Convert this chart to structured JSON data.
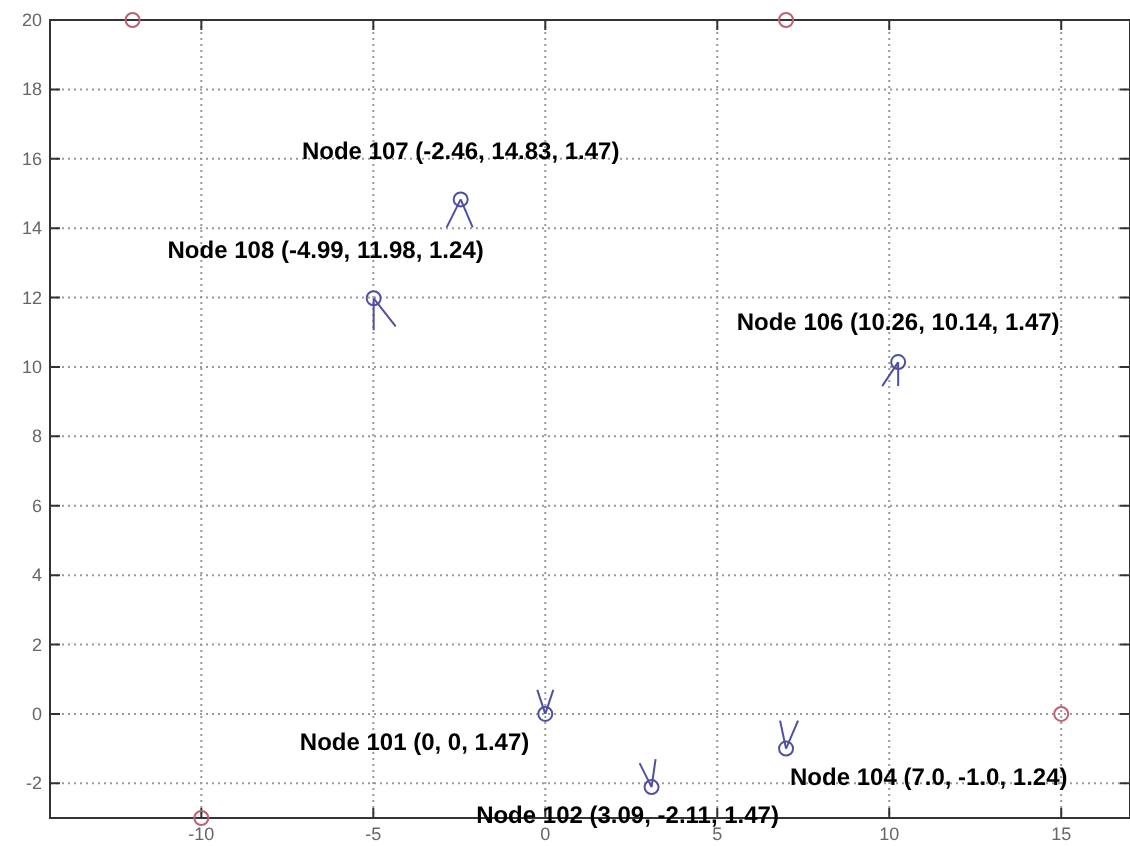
{
  "chart_data": {
    "type": "scatter",
    "xlim": [
      -14.4,
      17
    ],
    "ylim": [
      -3,
      20
    ],
    "xticks": [
      -10,
      -5,
      0,
      5,
      10,
      15
    ],
    "yticks": [
      -2,
      0,
      2,
      4,
      6,
      8,
      10,
      12,
      14,
      16,
      18,
      20
    ],
    "grid": true,
    "marker": "circle",
    "series": [
      {
        "color": "#c06070",
        "x": [
          -12,
          7,
          15,
          -10
        ],
        "values": [
          20,
          20,
          0,
          -3
        ]
      },
      {
        "color": "#5050a0",
        "x": [
          0,
          3.09,
          7,
          10.26,
          -2.46,
          -4.99
        ],
        "values": [
          0,
          -2.11,
          -1,
          10.14,
          14.83,
          11.98
        ]
      }
    ],
    "annotations": [
      {
        "text": "Node 101 (0, 0, 1.47)",
        "x": 0,
        "y": 0
      },
      {
        "text": "Node 102 (3.09, -2.11, 1.47)",
        "x": 3.09,
        "y": -2.11
      },
      {
        "text": "Node 104 (7.0, -1.0, 1.24)",
        "x": 7,
        "y": -1
      },
      {
        "text": "Node 106 (10.26, 10.14, 1.47)",
        "x": 10.26,
        "y": 10.14
      },
      {
        "text": "Node 107 (-2.46, 14.83, 1.47)",
        "x": -2.46,
        "y": 14.83
      },
      {
        "text": "Node 108 (-4.99, 11.98, 1.24)",
        "x": -4.99,
        "y": 11.98
      }
    ]
  }
}
